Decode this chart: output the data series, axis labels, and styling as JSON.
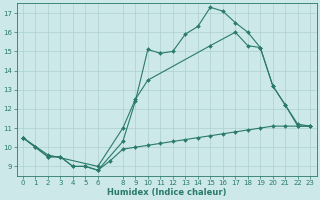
{
  "title": "",
  "xlabel": "Humidex (Indice chaleur)",
  "ylabel": "",
  "background_color": "#cce8e8",
  "line_color": "#2a7a6a",
  "grid_color": "#aecfcf",
  "xlim": [
    -0.5,
    23.5
  ],
  "ylim": [
    8.5,
    17.5
  ],
  "xticks": [
    0,
    1,
    2,
    3,
    4,
    5,
    6,
    8,
    9,
    10,
    11,
    12,
    13,
    14,
    15,
    16,
    17,
    18,
    19,
    20,
    21,
    22,
    23
  ],
  "yticks": [
    9,
    10,
    11,
    12,
    13,
    14,
    15,
    16,
    17
  ],
  "line1_x": [
    0,
    1,
    2,
    3,
    4,
    5,
    6,
    8,
    9,
    10,
    11,
    12,
    13,
    14,
    15,
    16,
    17,
    18,
    19,
    20,
    21,
    22,
    23
  ],
  "line1_y": [
    10.5,
    10.0,
    9.5,
    9.5,
    9.0,
    9.0,
    8.8,
    10.3,
    12.4,
    15.1,
    14.9,
    15.0,
    15.9,
    16.3,
    17.3,
    17.1,
    16.5,
    16.0,
    15.2,
    13.2,
    12.2,
    11.1,
    11.1
  ],
  "line2_x": [
    0,
    2,
    6,
    8,
    9,
    10,
    15,
    17,
    18,
    19,
    20,
    21,
    22,
    23
  ],
  "line2_y": [
    10.5,
    9.6,
    9.0,
    11.0,
    12.5,
    13.5,
    15.3,
    16.0,
    15.3,
    15.2,
    13.2,
    12.2,
    11.2,
    11.1
  ],
  "line3_x": [
    0,
    1,
    2,
    3,
    4,
    5,
    6,
    7,
    8,
    9,
    10,
    11,
    12,
    13,
    14,
    15,
    16,
    17,
    18,
    19,
    20,
    21,
    22,
    23
  ],
  "line3_y": [
    10.5,
    10.0,
    9.5,
    9.5,
    9.0,
    9.0,
    8.8,
    9.3,
    9.9,
    10.0,
    10.1,
    10.2,
    10.3,
    10.4,
    10.5,
    10.6,
    10.7,
    10.8,
    10.9,
    11.0,
    11.1,
    11.1,
    11.1,
    11.1
  ],
  "tick_fontsize": 5.0,
  "xlabel_fontsize": 6.0,
  "marker_size": 2.0,
  "line_width": 0.8
}
